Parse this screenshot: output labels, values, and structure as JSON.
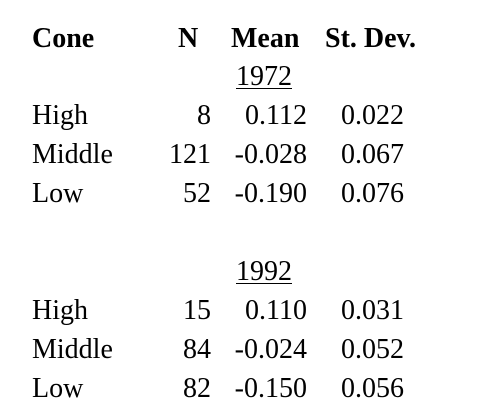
{
  "header": {
    "cone": "Cone",
    "n": "N",
    "mean": "Mean",
    "st_dev": "St. Dev."
  },
  "groups": [
    {
      "year": "1972",
      "rows": [
        {
          "cone": "High",
          "n": "8",
          "mean": "0.112",
          "st_dev": "0.022"
        },
        {
          "cone": "Middle",
          "n": "121",
          "mean": "-0.028",
          "st_dev": "0.067"
        },
        {
          "cone": "Low",
          "n": "52",
          "mean": "-0.190",
          "st_dev": "0.076"
        }
      ]
    },
    {
      "year": "1992",
      "rows": [
        {
          "cone": "High",
          "n": "15",
          "mean": "0.110",
          "st_dev": "0.031"
        },
        {
          "cone": "Middle",
          "n": "84",
          "mean": "-0.024",
          "st_dev": "0.052"
        },
        {
          "cone": "Low",
          "n": "82",
          "mean": "-0.150",
          "st_dev": "0.056"
        }
      ]
    }
  ]
}
